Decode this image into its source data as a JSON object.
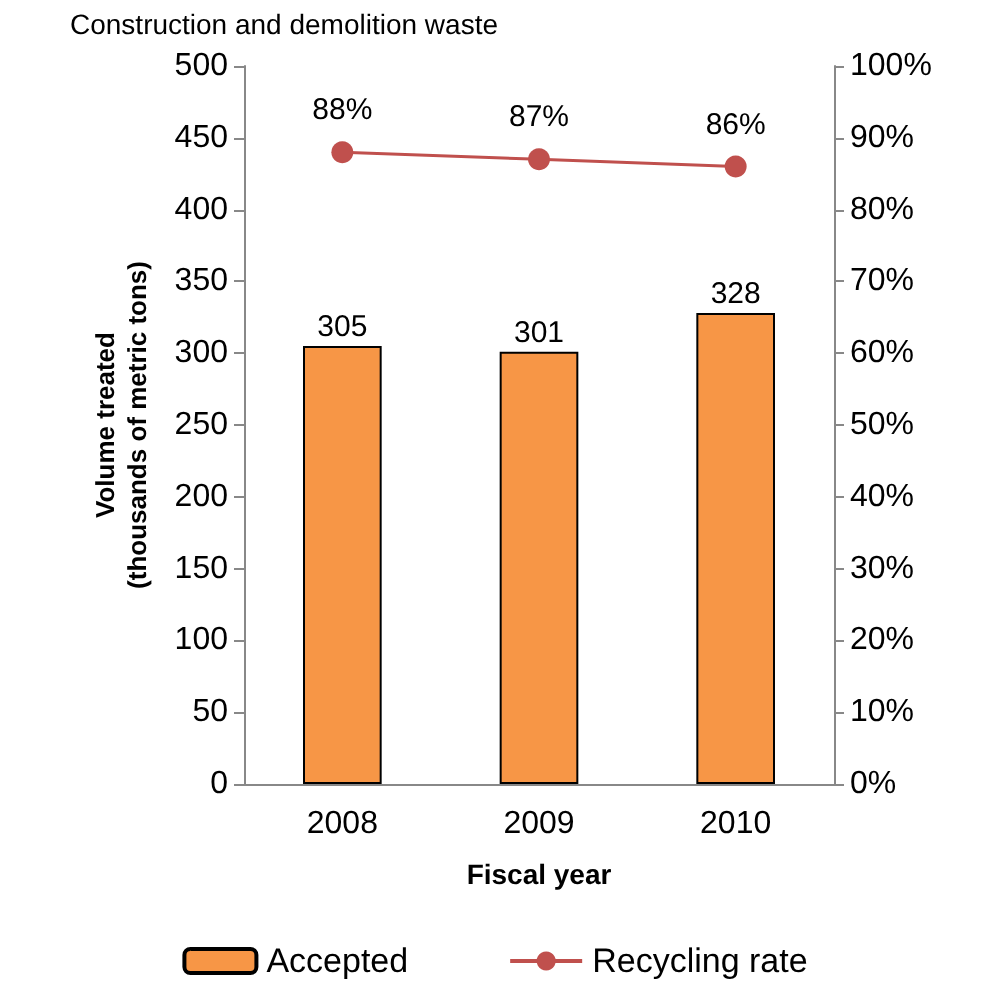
{
  "chart_data": {
    "type": "bar",
    "title": "Construction and demolition waste",
    "xlabel": "Fiscal year",
    "ylabel": "Volume treated\n(thousands of metric tons)",
    "categories": [
      "2008",
      "2009",
      "2010"
    ],
    "series": [
      {
        "name": "Accepted",
        "color": "#f79646",
        "values": [
          305,
          301,
          328
        ],
        "value_labels": [
          "305",
          "301",
          "328"
        ]
      },
      {
        "name": "Recycling rate",
        "type": "line",
        "axis": "y2",
        "color": "#c0504d",
        "values": [
          88,
          87,
          86
        ],
        "value_labels": [
          "88%",
          "87%",
          "86%"
        ]
      }
    ],
    "ylim": [
      0,
      500
    ],
    "yticks": [
      0,
      50,
      100,
      150,
      200,
      250,
      300,
      350,
      400,
      450,
      500
    ],
    "y2lim": [
      0,
      100
    ],
    "y2ticks": [
      {
        "value": 0,
        "label": "0%"
      },
      {
        "value": 10,
        "label": "10%"
      },
      {
        "value": 20,
        "label": "20%"
      },
      {
        "value": 30,
        "label": "30%"
      },
      {
        "value": 40,
        "label": "40%"
      },
      {
        "value": 50,
        "label": "50%"
      },
      {
        "value": 60,
        "label": "60%"
      },
      {
        "value": 70,
        "label": "70%"
      },
      {
        "value": 80,
        "label": "80%"
      },
      {
        "value": 90,
        "label": "90%"
      },
      {
        "value": 100,
        "label": "100%"
      }
    ],
    "marker": "circle",
    "legend": "bottom",
    "grid": false
  }
}
